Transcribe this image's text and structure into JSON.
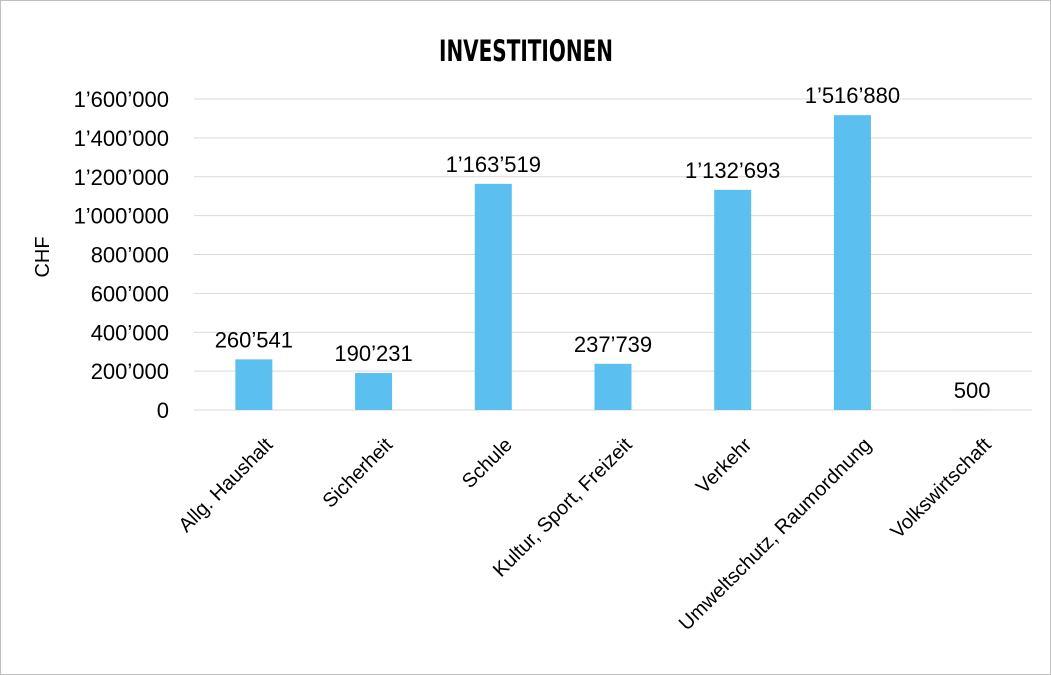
{
  "chart_data": {
    "type": "bar",
    "title": "INVESTITIONEN",
    "xlabel": "",
    "ylabel": "CHF",
    "categories": [
      "Allg. Haushalt",
      "Sicherheit",
      "Schule",
      "Kultur, Sport, Freizeit",
      "Verkehr",
      "Umweltschutz, Raumordnung",
      "Volkswirtschaft"
    ],
    "values": [
      260541,
      190231,
      1163519,
      237739,
      1132693,
      1516880,
      500
    ],
    "data_labels": [
      "260’541",
      "190’231",
      "1’163’519",
      "237’739",
      "1’132’693",
      "1’516’880",
      "500"
    ],
    "ylim": [
      0,
      1600000
    ],
    "yticks": [
      0,
      200000,
      400000,
      600000,
      800000,
      1000000,
      1200000,
      1400000,
      1600000
    ],
    "ytick_labels": [
      "0",
      "200’000",
      "400’000",
      "600’000",
      "800’000",
      "1’000’000",
      "1’200’000",
      "1’400’000",
      "1’600’000"
    ],
    "grid": true,
    "legend": "none",
    "colors": {
      "bar": "#5bc0f0",
      "grid": "#d9d9d9",
      "text": "#000000"
    }
  }
}
